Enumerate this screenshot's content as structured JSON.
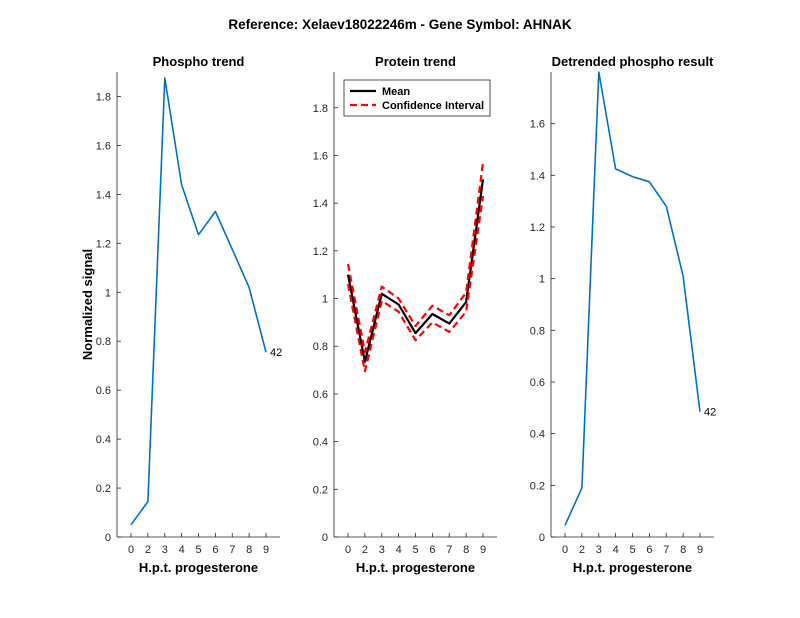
{
  "figure": {
    "suptitle": "Reference:  Xelaev18022246m - Gene Symbol:  AHNAK"
  },
  "chart_data": [
    {
      "type": "line",
      "title": "Phospho trend",
      "xlabel": "H.p.t. progesterone",
      "ylabel": "Normalized signal",
      "xtick_labels": [
        "0",
        "2",
        "3",
        "4",
        "5",
        "6",
        "7",
        "8",
        "9"
      ],
      "ylim": [
        0,
        1.9
      ],
      "yticks": [
        0,
        0.2,
        0.4,
        0.6,
        0.8,
        1,
        1.2,
        1.4,
        1.6,
        1.8
      ],
      "ytick_labels": [
        "0",
        "0.2",
        "0.4",
        "0.6",
        "0.8",
        "1",
        "1.2",
        "1.4",
        "1.6",
        "1.8"
      ],
      "series": [
        {
          "name": "phospho",
          "color": "#0072BD",
          "style": "solid",
          "values": [
            0.05,
            0.145,
            1.875,
            1.44,
            1.235,
            1.33,
            1.175,
            1.02,
            0.755
          ]
        }
      ],
      "end_label": "42"
    },
    {
      "type": "line",
      "title": "Protein trend",
      "xlabel": "H.p.t. progesterone",
      "ylabel": "",
      "xtick_labels": [
        "0",
        "2",
        "3",
        "4",
        "5",
        "6",
        "7",
        "8",
        "9"
      ],
      "ylim": [
        0,
        1.95
      ],
      "yticks": [
        0,
        0.2,
        0.4,
        0.6,
        0.8,
        1,
        1.2,
        1.4,
        1.6,
        1.8
      ],
      "ytick_labels": [
        "0",
        "0.2",
        "0.4",
        "0.6",
        "0.8",
        "1",
        "1.2",
        "1.4",
        "1.6",
        "1.8"
      ],
      "legend": {
        "position": "top-left",
        "entries": [
          "Mean",
          "Confidence Interval"
        ]
      },
      "series": [
        {
          "name": "Mean",
          "color": "#000000",
          "style": "solid",
          "values": [
            1.1,
            0.735,
            1.02,
            0.975,
            0.855,
            0.935,
            0.895,
            0.985,
            1.5
          ]
        },
        {
          "name": "Confidence Interval",
          "color": "#FF0000",
          "style": "dashed",
          "values": [
            1.145,
            0.775,
            1.05,
            1.0,
            0.885,
            0.97,
            0.93,
            1.025,
            1.57
          ]
        },
        {
          "name": "Confidence Interval",
          "color": "#FF0000",
          "style": "dashed",
          "values": [
            1.06,
            0.695,
            0.99,
            0.945,
            0.825,
            0.9,
            0.86,
            0.945,
            1.43
          ]
        }
      ]
    },
    {
      "type": "line",
      "title": "Detrended phospho result",
      "xlabel": "H.p.t. progesterone",
      "ylabel": "",
      "xtick_labels": [
        "0",
        "2",
        "3",
        "4",
        "5",
        "6",
        "7",
        "8",
        "9"
      ],
      "ylim": [
        0,
        1.8
      ],
      "yticks": [
        0,
        0.2,
        0.4,
        0.6,
        0.8,
        1,
        1.2,
        1.4,
        1.6
      ],
      "ytick_labels": [
        "0",
        "0.2",
        "0.4",
        "0.6",
        "0.8",
        "1",
        "1.2",
        "1.4",
        "1.6"
      ],
      "series": [
        {
          "name": "detrended",
          "color": "#0072BD",
          "style": "solid",
          "values": [
            0.045,
            0.19,
            1.8,
            1.425,
            1.395,
            1.375,
            1.28,
            1.01,
            0.485
          ]
        }
      ],
      "end_label": "42"
    }
  ]
}
